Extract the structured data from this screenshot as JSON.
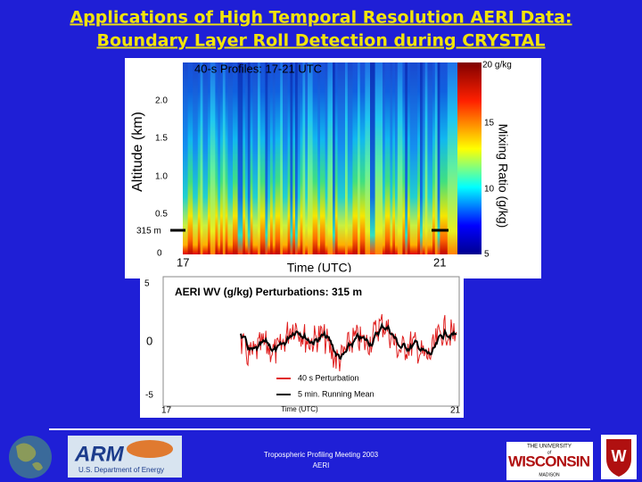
{
  "title": {
    "line1": "Applications of High Temporal Resolution AERI Data:",
    "line2": "Boundary Layer Roll Detection during CRYSTAL"
  },
  "profile_plot": {
    "title": "40-s Profiles: 17-21 UTC",
    "y_label": "Altitude (km)",
    "y_ticks": [
      "2.0",
      "1.5",
      "1.0",
      "0.5",
      "0"
    ],
    "marker_label": "315 m",
    "x_ticks": [
      "17",
      "21"
    ],
    "x_label": "Time (UTC)",
    "colorbar_ticks": [
      "20 g/kg",
      "15",
      "10",
      "5"
    ],
    "colorbar_label": "Mixing Ratio (g/kg)"
  },
  "perturbation_plot": {
    "title": "AERI WV (g/kg) Perturbations: 315 m",
    "y_ticks": [
      "5",
      "0",
      "-5"
    ],
    "x_ticks": [
      "17",
      "21"
    ],
    "x_label": "Time (UTC)",
    "legend": [
      "40 s Perturbation",
      "5 min. Running Mean"
    ]
  },
  "footer": {
    "meeting": "Tropospheric Profiling Meeting 2003",
    "project": "AERI"
  },
  "logos": {
    "arm": "ARM",
    "doe": "U.S. Department of Energy",
    "uw_line1": "THE UNIVERSITY",
    "uw_of": "of",
    "uw_name": "WISCONSIN",
    "uw_madison": "MADISON"
  }
}
